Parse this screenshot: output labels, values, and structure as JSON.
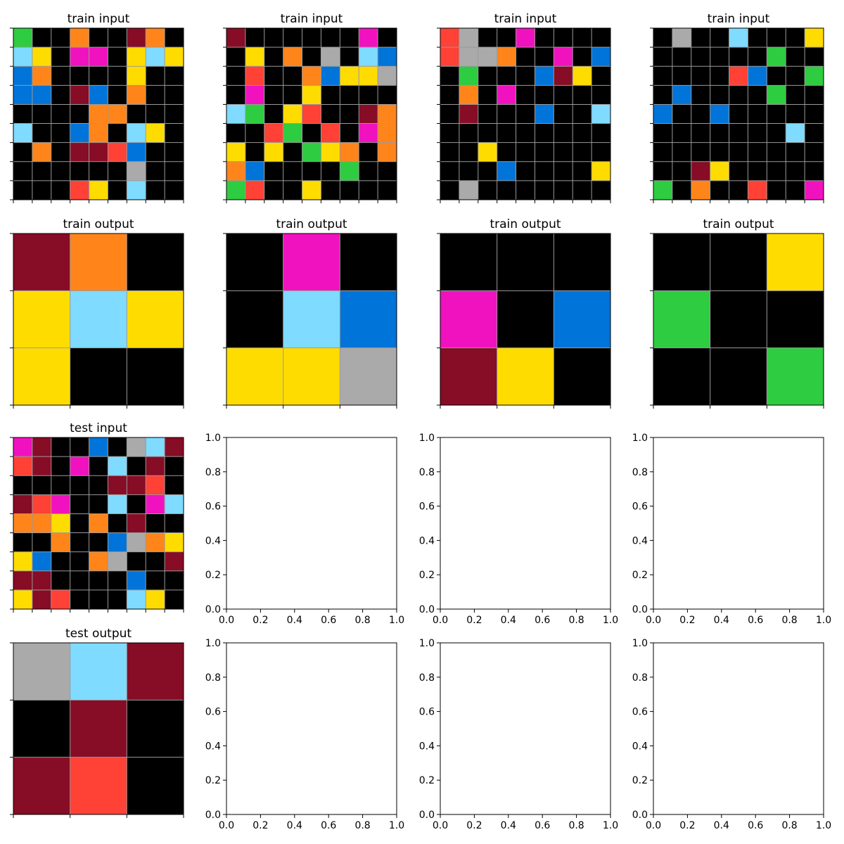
{
  "palette": {
    "0": "#000000",
    "1": "#0074D9",
    "2": "#FF4136",
    "3": "#2ECC40",
    "4": "#FFDC00",
    "5": "#AAAAAA",
    "6": "#F012BE",
    "7": "#FF851B",
    "8": "#7FDBFF",
    "9": "#870C25"
  },
  "empty_axis_ticks": [
    "0.0",
    "0.2",
    "0.4",
    "0.6",
    "0.8",
    "1.0"
  ],
  "panels": [
    {
      "title": "train input",
      "grid": [
        [
          3,
          0,
          0,
          7,
          0,
          0,
          9,
          7,
          0
        ],
        [
          8,
          4,
          0,
          6,
          6,
          0,
          4,
          8,
          4
        ],
        [
          1,
          7,
          0,
          0,
          0,
          0,
          4,
          0,
          0
        ],
        [
          1,
          1,
          0,
          9,
          1,
          0,
          7,
          0,
          0
        ],
        [
          0,
          0,
          0,
          0,
          7,
          7,
          0,
          0,
          0
        ],
        [
          8,
          0,
          0,
          1,
          7,
          0,
          8,
          4,
          0
        ],
        [
          0,
          7,
          0,
          9,
          9,
          2,
          1,
          0,
          0
        ],
        [
          0,
          0,
          0,
          0,
          0,
          0,
          5,
          0,
          0
        ],
        [
          0,
          0,
          0,
          2,
          4,
          0,
          8,
          0,
          0
        ]
      ]
    },
    {
      "title": "train input",
      "grid": [
        [
          9,
          0,
          0,
          0,
          0,
          0,
          0,
          6,
          0
        ],
        [
          0,
          4,
          0,
          7,
          0,
          5,
          0,
          8,
          1
        ],
        [
          0,
          2,
          0,
          0,
          7,
          1,
          4,
          4,
          5
        ],
        [
          0,
          6,
          0,
          0,
          4,
          0,
          0,
          0,
          0
        ],
        [
          8,
          3,
          0,
          4,
          2,
          0,
          0,
          9,
          7
        ],
        [
          0,
          0,
          2,
          3,
          0,
          2,
          0,
          6,
          7
        ],
        [
          4,
          0,
          4,
          0,
          3,
          4,
          7,
          0,
          7
        ],
        [
          7,
          1,
          0,
          0,
          0,
          0,
          3,
          0,
          0
        ],
        [
          3,
          2,
          0,
          0,
          4,
          0,
          0,
          0,
          0
        ]
      ]
    },
    {
      "title": "train input",
      "grid": [
        [
          2,
          5,
          0,
          0,
          6,
          0,
          0,
          0,
          0
        ],
        [
          2,
          5,
          5,
          7,
          0,
          0,
          6,
          0,
          1
        ],
        [
          0,
          3,
          0,
          0,
          0,
          1,
          9,
          4,
          0
        ],
        [
          0,
          7,
          0,
          6,
          0,
          0,
          0,
          0,
          0
        ],
        [
          0,
          9,
          0,
          0,
          0,
          1,
          0,
          0,
          8
        ],
        [
          0,
          0,
          0,
          0,
          0,
          0,
          0,
          0,
          0
        ],
        [
          0,
          0,
          4,
          0,
          0,
          0,
          0,
          0,
          0
        ],
        [
          0,
          0,
          0,
          1,
          0,
          0,
          0,
          0,
          4
        ],
        [
          0,
          5,
          0,
          0,
          0,
          0,
          0,
          0,
          0
        ]
      ]
    },
    {
      "title": "train input",
      "grid": [
        [
          0,
          5,
          0,
          0,
          8,
          0,
          0,
          0,
          4
        ],
        [
          0,
          0,
          0,
          0,
          0,
          0,
          3,
          0,
          0
        ],
        [
          0,
          0,
          0,
          0,
          2,
          1,
          0,
          0,
          3
        ],
        [
          0,
          1,
          0,
          0,
          0,
          0,
          3,
          0,
          0
        ],
        [
          1,
          0,
          0,
          1,
          0,
          0,
          0,
          0,
          0
        ],
        [
          0,
          0,
          0,
          0,
          0,
          0,
          0,
          8,
          0
        ],
        [
          0,
          0,
          0,
          0,
          0,
          0,
          0,
          0,
          0
        ],
        [
          0,
          0,
          9,
          4,
          0,
          0,
          0,
          0,
          0
        ],
        [
          3,
          0,
          7,
          0,
          0,
          2,
          0,
          0,
          6
        ]
      ]
    },
    {
      "title": "train output",
      "grid": [
        [
          9,
          7,
          0
        ],
        [
          4,
          8,
          4
        ],
        [
          4,
          0,
          0
        ]
      ]
    },
    {
      "title": "train output",
      "grid": [
        [
          0,
          6,
          0
        ],
        [
          0,
          8,
          1
        ],
        [
          4,
          4,
          5
        ]
      ]
    },
    {
      "title": "train output",
      "grid": [
        [
          0,
          0,
          0
        ],
        [
          6,
          0,
          1
        ],
        [
          9,
          4,
          0
        ]
      ]
    },
    {
      "title": "train output",
      "grid": [
        [
          0,
          0,
          4
        ],
        [
          3,
          0,
          0
        ],
        [
          0,
          0,
          3
        ]
      ]
    },
    {
      "title": "test input",
      "grid": [
        [
          6,
          9,
          0,
          0,
          1,
          0,
          5,
          8,
          9
        ],
        [
          2,
          9,
          0,
          6,
          0,
          8,
          0,
          9,
          0
        ],
        [
          0,
          0,
          0,
          0,
          0,
          9,
          9,
          2,
          0
        ],
        [
          9,
          2,
          6,
          0,
          0,
          8,
          0,
          6,
          8
        ],
        [
          7,
          7,
          4,
          0,
          7,
          0,
          9,
          0,
          0
        ],
        [
          0,
          0,
          7,
          0,
          0,
          1,
          5,
          7,
          4
        ],
        [
          4,
          1,
          0,
          0,
          7,
          5,
          0,
          0,
          9
        ],
        [
          9,
          9,
          0,
          0,
          0,
          0,
          1,
          0,
          0
        ],
        [
          4,
          9,
          2,
          0,
          0,
          0,
          8,
          4,
          0
        ]
      ]
    },
    {
      "title": "",
      "grid": null
    },
    {
      "title": "",
      "grid": null
    },
    {
      "title": "",
      "grid": null
    },
    {
      "title": "test output",
      "grid": [
        [
          5,
          8,
          9
        ],
        [
          0,
          9,
          0
        ],
        [
          9,
          2,
          0
        ]
      ]
    },
    {
      "title": "",
      "grid": null
    },
    {
      "title": "",
      "grid": null
    },
    {
      "title": "",
      "grid": null
    }
  ]
}
